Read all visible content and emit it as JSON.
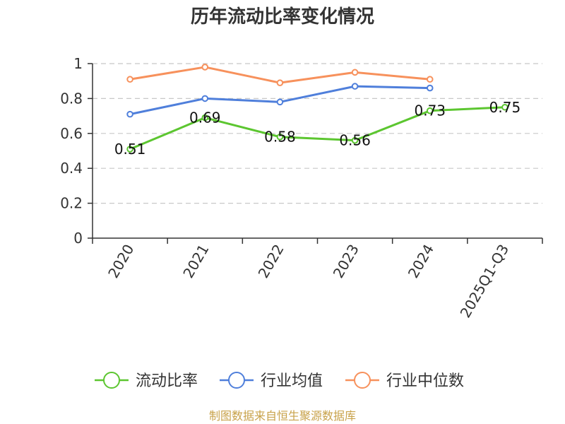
{
  "chart_data": {
    "type": "line",
    "title": "历年流动比率变化情况",
    "categories": [
      "2020",
      "2021",
      "2022",
      "2023",
      "2024",
      "2025Q1-Q3"
    ],
    "ylim": [
      0,
      1
    ],
    "yticks": [
      "0",
      "0.2",
      "0.4",
      "0.6",
      "0.8",
      "1"
    ],
    "ytick_values": [
      0,
      0.2,
      0.4,
      0.6,
      0.8,
      1
    ],
    "grid": true,
    "legend_position": "bottom",
    "series": [
      {
        "name": "流动比率",
        "color": "#5cc630",
        "values": [
          0.51,
          0.69,
          0.58,
          0.56,
          0.73,
          0.75
        ],
        "labels": [
          "0.51",
          "0.69",
          "0.58",
          "0.56",
          "0.73",
          "0.75"
        ]
      },
      {
        "name": "行业均值",
        "color": "#4f7fdb",
        "values": [
          0.71,
          0.8,
          0.78,
          0.87,
          0.86,
          null
        ]
      },
      {
        "name": "行业中位数",
        "color": "#f7915c",
        "values": [
          0.91,
          0.98,
          0.89,
          0.95,
          0.91,
          null
        ]
      }
    ]
  },
  "source_text": "制图数据来自恒生聚源数据库"
}
